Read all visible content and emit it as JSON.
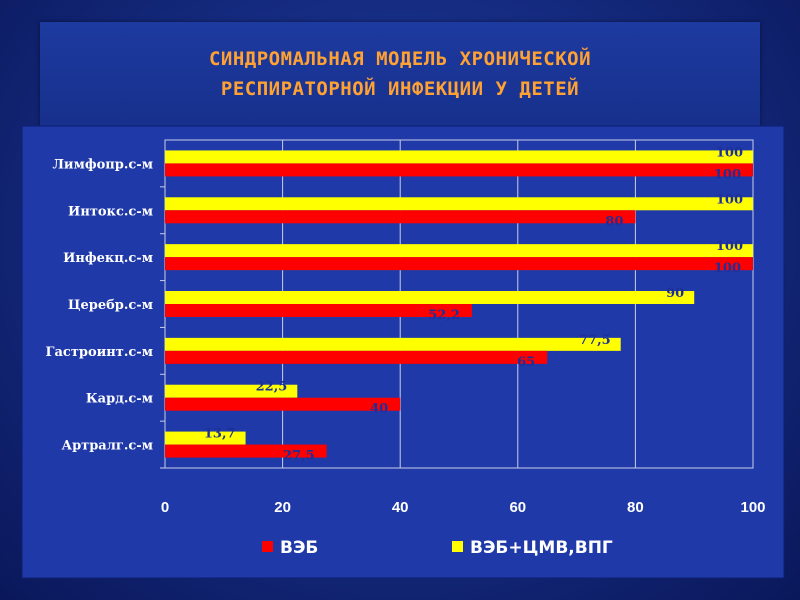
{
  "slide": {
    "title_lines": [
      "СИНДРОМАЛЬНАЯ МОДЕЛЬ ХРОНИЧЕСКОЙ",
      "РЕСПИРАТОРНОЙ ИНФЕКЦИИ У ДЕТЕЙ"
    ]
  },
  "colors": {
    "series_veb": "#ff0000",
    "series_veb_cmv": "#ffff00",
    "data_label": "#1d2f9a"
  },
  "chart_data": {
    "type": "bar",
    "orientation": "horizontal",
    "categories": [
      "Лимфопр.с-м",
      "Интокс.с-м",
      "Инфекц.с-м",
      "Церебр.с-м",
      "Гастроинт.с-м",
      "Кард.с-м",
      "Артралг.с-м"
    ],
    "series": [
      {
        "name": "ВЭБ",
        "values": [
          100,
          80,
          100,
          52.2,
          65,
          40,
          27.5
        ],
        "labels": [
          "100",
          "80",
          "100",
          "52,2",
          "65",
          "40",
          "27,5"
        ]
      },
      {
        "name": "ВЭБ+ЦМВ,ВПГ",
        "values": [
          100,
          100,
          100,
          90,
          77.5,
          22.5,
          13.7
        ],
        "labels": [
          "100",
          "100",
          "100",
          "90",
          "77,5",
          "22,5",
          "13,7"
        ]
      }
    ],
    "xlim": [
      0,
      100
    ],
    "xticks": [
      0,
      20,
      40,
      60,
      80,
      100
    ],
    "grid": true,
    "legend_position": "bottom"
  }
}
